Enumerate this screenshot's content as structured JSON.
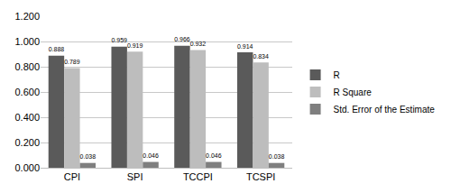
{
  "chart_data": {
    "type": "bar",
    "categories": [
      "CPI",
      "SPI",
      "TCCPI",
      "TCSPI"
    ],
    "series": [
      {
        "name": "R",
        "color": "#5a5a5a",
        "values": [
          0.888,
          0.959,
          0.966,
          0.914
        ]
      },
      {
        "name": "R Square",
        "color": "#bdbdbd",
        "values": [
          0.789,
          0.919,
          0.932,
          0.834
        ]
      },
      {
        "name": "Std. Error of the Estimate",
        "color": "#7f7f7f",
        "values": [
          0.038,
          0.046,
          0.046,
          0.038
        ]
      }
    ],
    "ylim": [
      0,
      1.2
    ],
    "yticks": [
      {
        "value": 0,
        "label": "0.000"
      },
      {
        "value": 0.2,
        "label": "0.200"
      },
      {
        "value": 0.4,
        "label": "0.400"
      },
      {
        "value": 0.6,
        "label": "0.600"
      },
      {
        "value": 0.8,
        "label": "0.800"
      },
      {
        "value": 1,
        "label": "1.000"
      },
      {
        "value": 1.2,
        "label": "1.200"
      }
    ],
    "grid": true,
    "legend": "right",
    "data_labels": true
  }
}
